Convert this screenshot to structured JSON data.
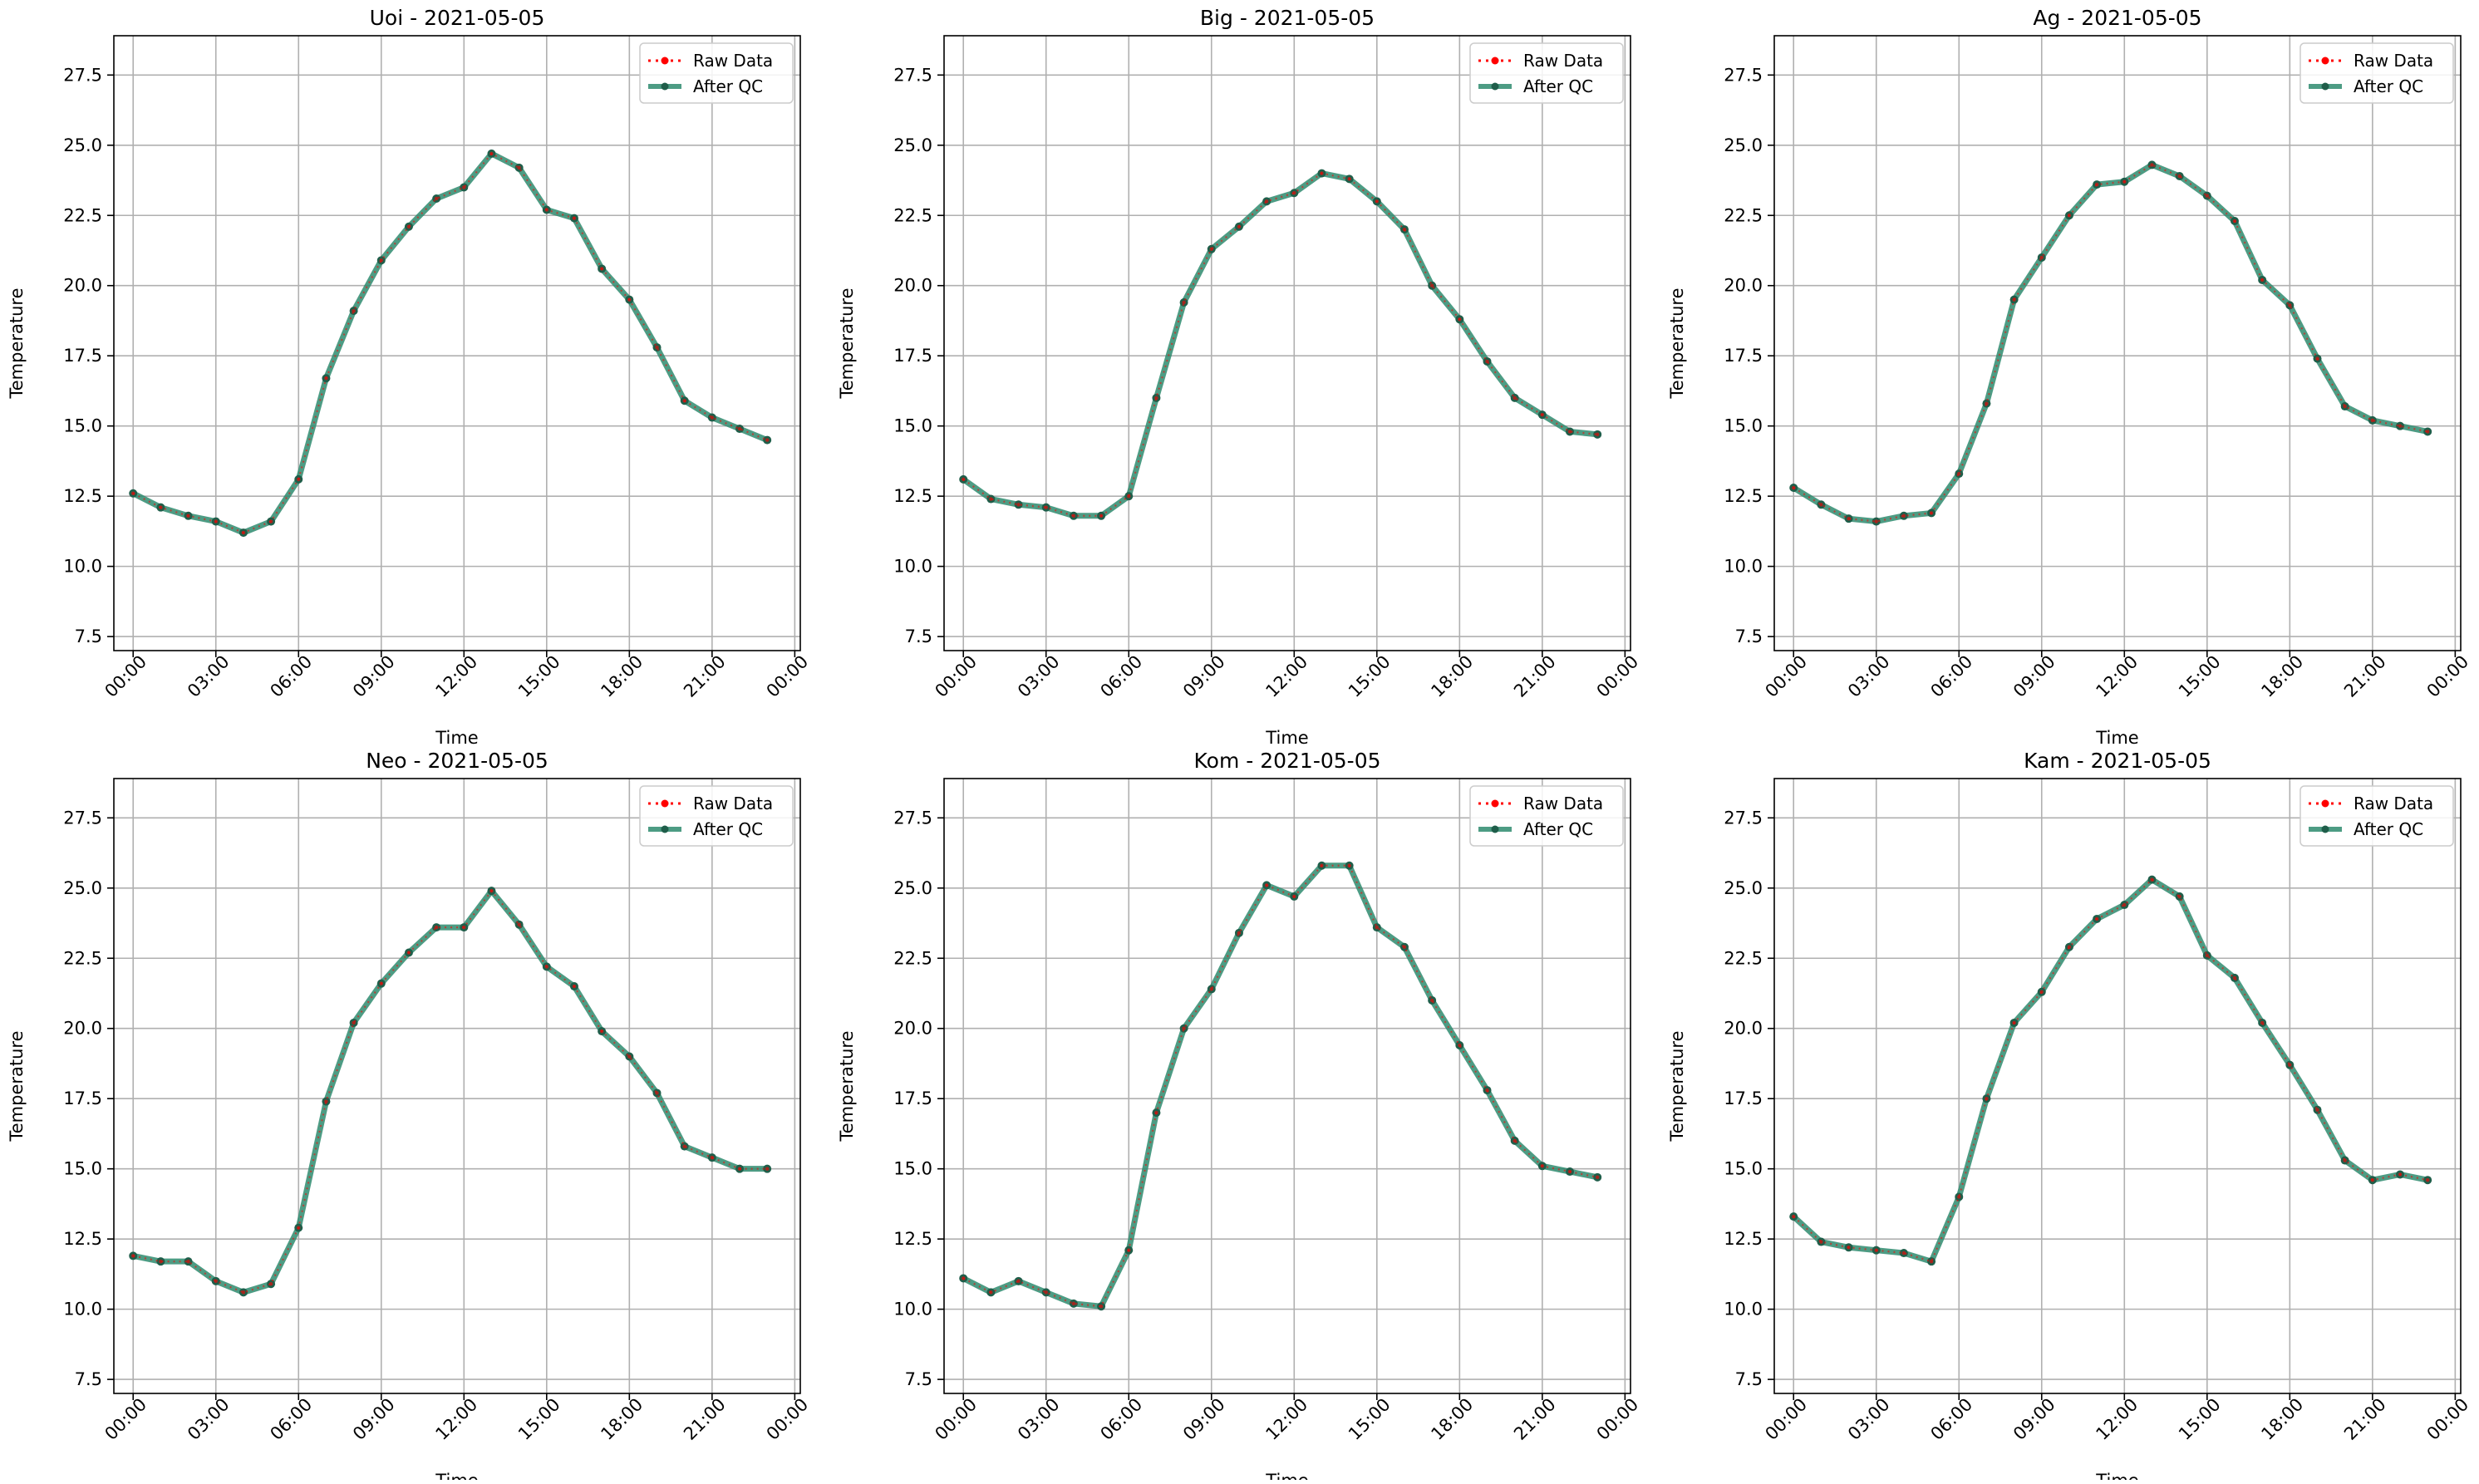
{
  "figure": {
    "colors": {
      "raw": "#ff0000",
      "qc": "#2e8b6e",
      "qc_marker": "#1f5e4a",
      "grid": "#b0b0b0",
      "axes": "#000000"
    },
    "legend": {
      "placement": "top-right",
      "raw_label": "Raw Data",
      "qc_label": "After QC"
    }
  },
  "chart_data": [
    {
      "type": "line",
      "title": "Uoi - 2021-05-05",
      "xlabel": "Time",
      "ylabel": "Temperature",
      "ylim": [
        7,
        28.9
      ],
      "xlim": [
        -0.7,
        24.2
      ],
      "grid": true,
      "legend_placement": "top-right",
      "x_ticks": [
        0,
        3,
        6,
        9,
        12,
        15,
        18,
        21,
        24
      ],
      "x_tick_labels": [
        "00:00",
        "03:00",
        "06:00",
        "09:00",
        "12:00",
        "15:00",
        "18:00",
        "21:00",
        "00:00"
      ],
      "y_ticks": [
        7.5,
        10.0,
        12.5,
        15.0,
        17.5,
        20.0,
        22.5,
        25.0,
        27.5
      ],
      "y_tick_labels": [
        "7.5",
        "10.0",
        "12.5",
        "15.0",
        "17.5",
        "20.0",
        "22.5",
        "25.0",
        "27.5"
      ],
      "x": [
        0,
        1,
        2,
        3,
        4,
        5,
        6,
        7,
        8,
        9,
        10,
        11,
        12,
        13,
        14,
        15,
        16,
        17,
        18,
        19,
        20,
        21,
        22,
        23
      ],
      "series": [
        {
          "name": "Raw Data",
          "values": [
            12.6,
            12.1,
            11.8,
            11.6,
            11.2,
            11.6,
            13.1,
            16.7,
            19.1,
            20.9,
            22.1,
            23.1,
            23.5,
            24.7,
            24.2,
            22.7,
            22.4,
            20.6,
            19.5,
            17.8,
            15.9,
            15.3,
            14.9,
            14.5
          ]
        },
        {
          "name": "After QC",
          "values": [
            12.6,
            12.1,
            11.8,
            11.6,
            11.2,
            11.6,
            13.1,
            16.7,
            19.1,
            20.9,
            22.1,
            23.1,
            23.5,
            24.7,
            24.2,
            22.7,
            22.4,
            20.6,
            19.5,
            17.8,
            15.9,
            15.3,
            14.9,
            14.5
          ]
        }
      ]
    },
    {
      "type": "line",
      "title": "Big - 2021-05-05",
      "xlabel": "Time",
      "ylabel": "Temperature",
      "ylim": [
        7,
        28.9
      ],
      "xlim": [
        -0.7,
        24.2
      ],
      "grid": true,
      "legend_placement": "top-right",
      "x_ticks": [
        0,
        3,
        6,
        9,
        12,
        15,
        18,
        21,
        24
      ],
      "x_tick_labels": [
        "00:00",
        "03:00",
        "06:00",
        "09:00",
        "12:00",
        "15:00",
        "18:00",
        "21:00",
        "00:00"
      ],
      "y_ticks": [
        7.5,
        10.0,
        12.5,
        15.0,
        17.5,
        20.0,
        22.5,
        25.0,
        27.5
      ],
      "y_tick_labels": [
        "7.5",
        "10.0",
        "12.5",
        "15.0",
        "17.5",
        "20.0",
        "22.5",
        "25.0",
        "27.5"
      ],
      "x": [
        0,
        1,
        2,
        3,
        4,
        5,
        6,
        7,
        8,
        9,
        10,
        11,
        12,
        13,
        14,
        15,
        16,
        17,
        18,
        19,
        20,
        21,
        22,
        23
      ],
      "series": [
        {
          "name": "Raw Data",
          "values": [
            13.1,
            12.4,
            12.2,
            12.1,
            11.8,
            11.8,
            12.5,
            16.0,
            19.4,
            21.3,
            22.1,
            23.0,
            23.3,
            24.0,
            23.8,
            23.0,
            22.0,
            20.0,
            18.8,
            17.3,
            16.0,
            15.4,
            14.8,
            14.7
          ]
        },
        {
          "name": "After QC",
          "values": [
            13.1,
            12.4,
            12.2,
            12.1,
            11.8,
            11.8,
            12.5,
            16.0,
            19.4,
            21.3,
            22.1,
            23.0,
            23.3,
            24.0,
            23.8,
            23.0,
            22.0,
            20.0,
            18.8,
            17.3,
            16.0,
            15.4,
            14.8,
            14.7
          ]
        }
      ]
    },
    {
      "type": "line",
      "title": "Ag - 2021-05-05",
      "xlabel": "Time",
      "ylabel": "Temperature",
      "ylim": [
        7,
        28.9
      ],
      "xlim": [
        -0.7,
        24.2
      ],
      "grid": true,
      "legend_placement": "top-right",
      "x_ticks": [
        0,
        3,
        6,
        9,
        12,
        15,
        18,
        21,
        24
      ],
      "x_tick_labels": [
        "00:00",
        "03:00",
        "06:00",
        "09:00",
        "12:00",
        "15:00",
        "18:00",
        "21:00",
        "00:00"
      ],
      "y_ticks": [
        7.5,
        10.0,
        12.5,
        15.0,
        17.5,
        20.0,
        22.5,
        25.0,
        27.5
      ],
      "y_tick_labels": [
        "7.5",
        "10.0",
        "12.5",
        "15.0",
        "17.5",
        "20.0",
        "22.5",
        "25.0",
        "27.5"
      ],
      "x": [
        0,
        1,
        2,
        3,
        4,
        5,
        6,
        7,
        8,
        9,
        10,
        11,
        12,
        13,
        14,
        15,
        16,
        17,
        18,
        19,
        20,
        21,
        22,
        23
      ],
      "series": [
        {
          "name": "Raw Data",
          "values": [
            12.8,
            12.2,
            11.7,
            11.6,
            11.8,
            11.9,
            13.3,
            15.8,
            19.5,
            21.0,
            22.5,
            23.6,
            23.7,
            24.3,
            23.9,
            23.2,
            22.3,
            20.2,
            19.3,
            17.4,
            15.7,
            15.2,
            15.0,
            14.8
          ]
        },
        {
          "name": "After QC",
          "values": [
            12.8,
            12.2,
            11.7,
            11.6,
            11.8,
            11.9,
            13.3,
            15.8,
            19.5,
            21.0,
            22.5,
            23.6,
            23.7,
            24.3,
            23.9,
            23.2,
            22.3,
            20.2,
            19.3,
            17.4,
            15.7,
            15.2,
            15.0,
            14.8
          ]
        }
      ]
    },
    {
      "type": "line",
      "title": "Neo - 2021-05-05",
      "xlabel": "Time",
      "ylabel": "Temperature",
      "ylim": [
        7,
        28.9
      ],
      "xlim": [
        -0.7,
        24.2
      ],
      "grid": true,
      "legend_placement": "top-right",
      "x_ticks": [
        0,
        3,
        6,
        9,
        12,
        15,
        18,
        21,
        24
      ],
      "x_tick_labels": [
        "00:00",
        "03:00",
        "06:00",
        "09:00",
        "12:00",
        "15:00",
        "18:00",
        "21:00",
        "00:00"
      ],
      "y_ticks": [
        7.5,
        10.0,
        12.5,
        15.0,
        17.5,
        20.0,
        22.5,
        25.0,
        27.5
      ],
      "y_tick_labels": [
        "7.5",
        "10.0",
        "12.5",
        "15.0",
        "17.5",
        "20.0",
        "22.5",
        "25.0",
        "27.5"
      ],
      "x": [
        0,
        1,
        2,
        3,
        4,
        5,
        6,
        7,
        8,
        9,
        10,
        11,
        12,
        13,
        14,
        15,
        16,
        17,
        18,
        19,
        20,
        21,
        22,
        23
      ],
      "series": [
        {
          "name": "Raw Data",
          "values": [
            11.9,
            11.7,
            11.7,
            11.0,
            10.6,
            10.9,
            12.9,
            17.4,
            20.2,
            21.6,
            22.7,
            23.6,
            23.6,
            24.9,
            23.7,
            22.2,
            21.5,
            19.9,
            19.0,
            17.7,
            15.8,
            15.4,
            15.0,
            15.0
          ]
        },
        {
          "name": "After QC",
          "values": [
            11.9,
            11.7,
            11.7,
            11.0,
            10.6,
            10.9,
            12.9,
            17.4,
            20.2,
            21.6,
            22.7,
            23.6,
            23.6,
            24.9,
            23.7,
            22.2,
            21.5,
            19.9,
            19.0,
            17.7,
            15.8,
            15.4,
            15.0,
            15.0
          ]
        }
      ]
    },
    {
      "type": "line",
      "title": "Kom - 2021-05-05",
      "xlabel": "Time",
      "ylabel": "Temperature",
      "ylim": [
        7,
        28.9
      ],
      "xlim": [
        -0.7,
        24.2
      ],
      "grid": true,
      "legend_placement": "top-right",
      "x_ticks": [
        0,
        3,
        6,
        9,
        12,
        15,
        18,
        21,
        24
      ],
      "x_tick_labels": [
        "00:00",
        "03:00",
        "06:00",
        "09:00",
        "12:00",
        "15:00",
        "18:00",
        "21:00",
        "00:00"
      ],
      "y_ticks": [
        7.5,
        10.0,
        12.5,
        15.0,
        17.5,
        20.0,
        22.5,
        25.0,
        27.5
      ],
      "y_tick_labels": [
        "7.5",
        "10.0",
        "12.5",
        "15.0",
        "17.5",
        "20.0",
        "22.5",
        "25.0",
        "27.5"
      ],
      "x": [
        0,
        1,
        2,
        3,
        4,
        5,
        6,
        7,
        8,
        9,
        10,
        11,
        12,
        13,
        14,
        15,
        16,
        17,
        18,
        19,
        20,
        21,
        22,
        23
      ],
      "series": [
        {
          "name": "Raw Data",
          "values": [
            11.1,
            10.6,
            11.0,
            10.6,
            10.2,
            10.1,
            12.1,
            17.0,
            20.0,
            21.4,
            23.4,
            25.1,
            24.7,
            25.8,
            25.8,
            23.6,
            22.9,
            21.0,
            19.4,
            17.8,
            16.0,
            15.1,
            14.9,
            14.7
          ]
        },
        {
          "name": "After QC",
          "values": [
            11.1,
            10.6,
            11.0,
            10.6,
            10.2,
            10.1,
            12.1,
            17.0,
            20.0,
            21.4,
            23.4,
            25.1,
            24.7,
            25.8,
            25.8,
            23.6,
            22.9,
            21.0,
            19.4,
            17.8,
            16.0,
            15.1,
            14.9,
            14.7
          ]
        }
      ]
    },
    {
      "type": "line",
      "title": "Kam - 2021-05-05",
      "xlabel": "Time",
      "ylabel": "Temperature",
      "ylim": [
        7,
        28.9
      ],
      "xlim": [
        -0.7,
        24.2
      ],
      "grid": true,
      "legend_placement": "top-right",
      "x_ticks": [
        0,
        3,
        6,
        9,
        12,
        15,
        18,
        21,
        24
      ],
      "x_tick_labels": [
        "00:00",
        "03:00",
        "06:00",
        "09:00",
        "12:00",
        "15:00",
        "18:00",
        "21:00",
        "00:00"
      ],
      "y_ticks": [
        7.5,
        10.0,
        12.5,
        15.0,
        17.5,
        20.0,
        22.5,
        25.0,
        27.5
      ],
      "y_tick_labels": [
        "7.5",
        "10.0",
        "12.5",
        "15.0",
        "17.5",
        "20.0",
        "22.5",
        "25.0",
        "27.5"
      ],
      "x": [
        0,
        1,
        2,
        3,
        4,
        5,
        6,
        7,
        8,
        9,
        10,
        11,
        12,
        13,
        14,
        15,
        16,
        17,
        18,
        19,
        20,
        21,
        22,
        23
      ],
      "series": [
        {
          "name": "Raw Data",
          "values": [
            13.3,
            12.4,
            12.2,
            12.1,
            12.0,
            11.7,
            14.0,
            17.5,
            20.2,
            21.3,
            22.9,
            23.9,
            24.4,
            25.3,
            24.7,
            22.6,
            21.8,
            20.2,
            18.7,
            17.1,
            15.3,
            14.6,
            14.8,
            14.6
          ]
        },
        {
          "name": "After QC",
          "values": [
            13.3,
            12.4,
            12.2,
            12.1,
            12.0,
            11.7,
            14.0,
            17.5,
            20.2,
            21.3,
            22.9,
            23.9,
            24.4,
            25.3,
            24.7,
            22.6,
            21.8,
            20.2,
            18.7,
            17.1,
            15.3,
            14.6,
            14.8,
            14.6
          ]
        }
      ]
    }
  ]
}
